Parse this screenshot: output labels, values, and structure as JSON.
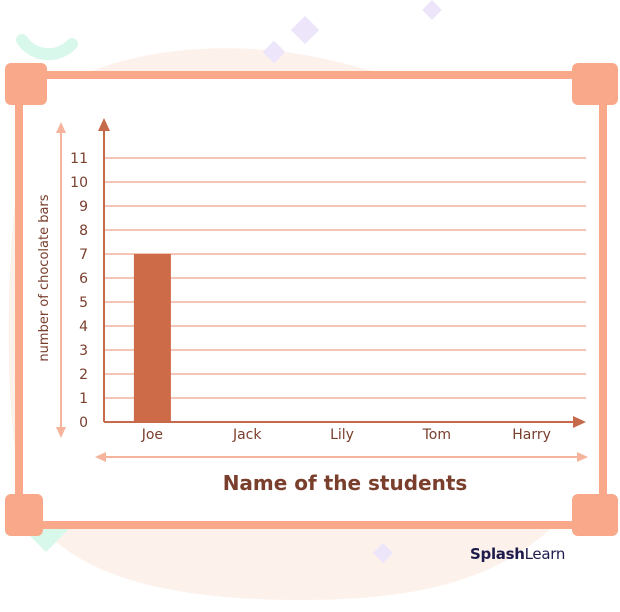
{
  "brand": {
    "name_part1": "Splash",
    "name_part2": "Learn"
  },
  "colors": {
    "bar": "#cd6a47",
    "frame": "#f9a98a",
    "gridline": "#f2b49d",
    "axis": "#c56a4a",
    "arrow_guide": "#f5b49b",
    "text": "#7a3e2c",
    "blob": "#fdf1ec",
    "mint": "#d9f8ec",
    "lavender": "#ede6fb"
  },
  "chart_data": {
    "type": "bar",
    "categories": [
      "Joe",
      "Jack",
      "Lily",
      "Tom",
      "Harry"
    ],
    "values": [
      7,
      null,
      null,
      null,
      null
    ],
    "xlabel": "Name of the students",
    "ylabel": "number of chocolate bars",
    "ylim": [
      0,
      11
    ],
    "yticks": [
      0,
      1,
      2,
      3,
      4,
      5,
      6,
      7,
      8,
      9,
      10,
      11
    ],
    "grid": true
  }
}
